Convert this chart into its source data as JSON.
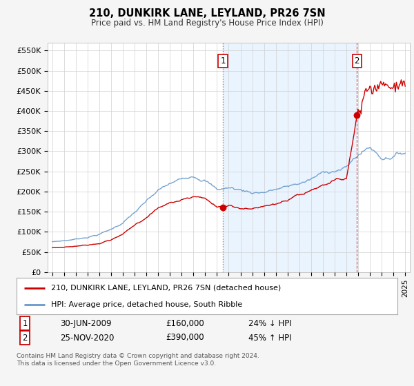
{
  "title": "210, DUNKIRK LANE, LEYLAND, PR26 7SN",
  "subtitle": "Price paid vs. HM Land Registry's House Price Index (HPI)",
  "legend_label_red": "210, DUNKIRK LANE, LEYLAND, PR26 7SN (detached house)",
  "legend_label_blue": "HPI: Average price, detached house, South Ribble",
  "footnote": "Contains HM Land Registry data © Crown copyright and database right 2024.\nThis data is licensed under the Open Government Licence v3.0.",
  "annotation1_date": "30-JUN-2009",
  "annotation1_price": "£160,000",
  "annotation1_hpi": "24% ↓ HPI",
  "annotation2_date": "25-NOV-2020",
  "annotation2_price": "£390,000",
  "annotation2_hpi": "45% ↑ HPI",
  "red_color": "#cc0000",
  "blue_color": "#6699cc",
  "shade_color": "#ddeeff",
  "background_color": "#f5f5f5",
  "plot_bg_color": "#ffffff",
  "ylim": [
    0,
    570000
  ],
  "yticks": [
    0,
    50000,
    100000,
    150000,
    200000,
    250000,
    300000,
    350000,
    400000,
    450000,
    500000,
    550000
  ],
  "ytick_labels": [
    "£0",
    "£50K",
    "£100K",
    "£150K",
    "£200K",
    "£250K",
    "£300K",
    "£350K",
    "£400K",
    "£450K",
    "£500K",
    "£550K"
  ],
  "sale1_year": 2009.5,
  "sale1_y": 160000,
  "sale2_year": 2020.9,
  "sale2_y": 390000,
  "xlim_left": 1994.6,
  "xlim_right": 2025.4
}
